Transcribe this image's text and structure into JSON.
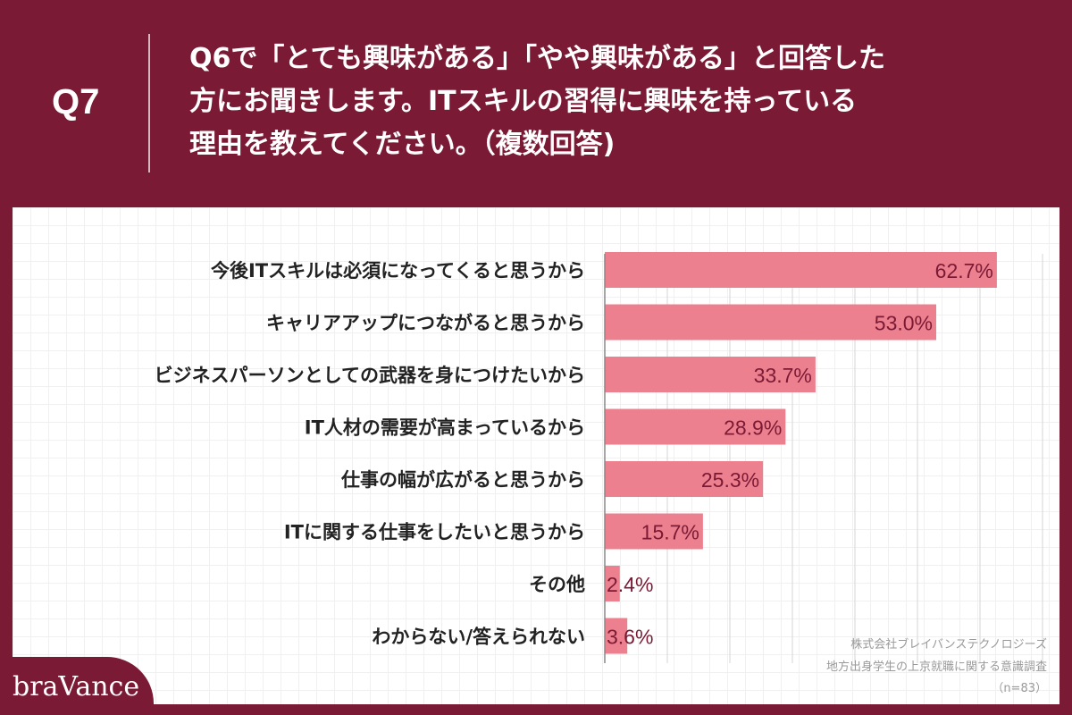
{
  "header": {
    "q_label": "Q7",
    "question_lines": [
      "Q6で「とても興味がある」「やや興味がある」と回答した",
      "方にお聞きします。ITスキルの習得に興味を持っている",
      "理由を教えてください。（複数回答)"
    ]
  },
  "footer": {
    "company": "株式会社ブレイバンステクノロジーズ",
    "survey": "地方出身学生の上京就職に関する意識調査",
    "sample": "（n=83）",
    "logo": "braVance"
  },
  "colors": {
    "bar": "#ec808f",
    "value_text": "#7b1a35",
    "background": "#7b1a35"
  },
  "chart_data": {
    "type": "bar",
    "orientation": "horizontal",
    "unit": "%",
    "categories": [
      "今後ITスキルは必須になってくると思うから",
      "キャリアアップにつながると思うから",
      "ビジネスパーソンとしての武器を身につけたいから",
      "IT人材の需要が高まっているから",
      "仕事の幅が広がると思うから",
      "ITに関する仕事をしたいと思うから",
      "その他",
      "わからない/答えられない"
    ],
    "values": [
      62.7,
      53.0,
      33.7,
      28.9,
      25.3,
      15.7,
      2.4,
      3.6
    ],
    "value_labels": [
      "62.7%",
      "53.0%",
      "33.7%",
      "28.9%",
      "25.3%",
      "15.7%",
      "2.4%",
      "3.6%"
    ],
    "xlim": [
      0,
      80
    ],
    "grid": true
  }
}
